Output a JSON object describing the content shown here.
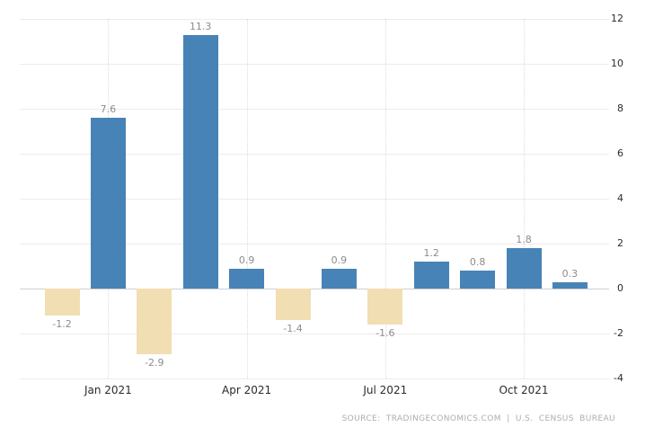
{
  "chart_data": {
    "type": "bar",
    "title": "",
    "values": [
      -1.2,
      7.6,
      -2.9,
      11.3,
      0.9,
      -1.4,
      0.9,
      -1.6,
      1.2,
      0.8,
      1.8,
      0.3
    ],
    "value_labels": [
      "-1.2",
      "7.6",
      "-2.9",
      "11.3",
      "0.9",
      "-1.4",
      "0.9",
      "-1.6",
      "1.2",
      "0.8",
      "1.8",
      "0.3"
    ],
    "x_ticks": [
      {
        "label": "Jan 2021",
        "bar_index": 1
      },
      {
        "label": "Apr 2021",
        "bar_index": 4
      },
      {
        "label": "Jul 2021",
        "bar_index": 7
      },
      {
        "label": "Oct 2021",
        "bar_index": 10
      }
    ],
    "y_ticks": [
      12,
      10,
      8,
      6,
      4,
      2,
      0,
      -2,
      -4
    ],
    "ylim": [
      -4,
      12
    ],
    "grid": true,
    "legend": "none",
    "colors": {
      "positive_bar": "#4783b6",
      "negative_bar": "#f2deb3",
      "value_label": "#8c8c8c",
      "axis_label": "#2b2b2b",
      "gridline": "#ececec",
      "zero_line": "#cfcfcf",
      "quarter_gridline": "#dcdcdc"
    }
  },
  "footer": {
    "source": "SOURCE: TRADINGECONOMICS.COM | U.S. CENSUS BUREAU"
  }
}
